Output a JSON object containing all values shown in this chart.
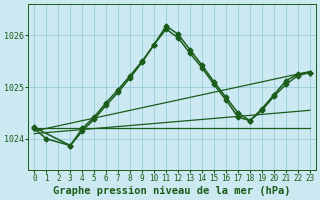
{
  "bg_color": "#cce8f0",
  "grid_color": "#99ccdd",
  "line_color": "#1a5c1a",
  "xlabel": "Graphe pression niveau de la mer (hPa)",
  "xlabel_fontsize": 7.5,
  "xlim": [
    -0.5,
    23.5
  ],
  "ylim": [
    1023.4,
    1026.6
  ],
  "yticks": [
    1024,
    1025,
    1026
  ],
  "xticks": [
    0,
    1,
    2,
    3,
    4,
    5,
    6,
    7,
    8,
    9,
    10,
    11,
    12,
    13,
    14,
    15,
    16,
    17,
    18,
    19,
    20,
    21,
    22,
    23
  ],
  "line1_x": [
    0,
    23
  ],
  "line1_y": [
    1024.2,
    1024.2
  ],
  "line2_x": [
    0,
    23
  ],
  "line2_y": [
    1024.15,
    1025.3
  ],
  "line3_x": [
    0,
    23
  ],
  "line3_y": [
    1024.1,
    1024.55
  ],
  "peaked1_x": [
    0,
    1,
    3,
    4,
    5,
    6,
    7,
    8,
    9,
    10,
    11,
    12,
    13,
    14,
    15,
    16,
    17,
    18,
    19,
    20,
    21,
    22,
    23
  ],
  "peaked1_y": [
    1024.2,
    1024.0,
    1023.87,
    1024.15,
    1024.38,
    1024.65,
    1024.9,
    1025.18,
    1025.48,
    1025.82,
    1026.12,
    1025.95,
    1025.65,
    1025.37,
    1025.05,
    1024.75,
    1024.42,
    1024.35,
    1024.55,
    1024.82,
    1025.05,
    1025.22,
    1025.28
  ],
  "peaked2_x": [
    0,
    3,
    4,
    5,
    6,
    7,
    8,
    9,
    10,
    11,
    12,
    13,
    14,
    15,
    16,
    17,
    18,
    19,
    20,
    21,
    22,
    23
  ],
  "peaked2_y": [
    1024.22,
    1023.87,
    1024.2,
    1024.42,
    1024.7,
    1024.95,
    1025.22,
    1025.5,
    1025.82,
    1026.18,
    1026.02,
    1025.72,
    1025.42,
    1025.1,
    1024.8,
    1024.5,
    1024.35,
    1024.58,
    1024.85,
    1025.12,
    1025.25,
    1025.28
  ]
}
